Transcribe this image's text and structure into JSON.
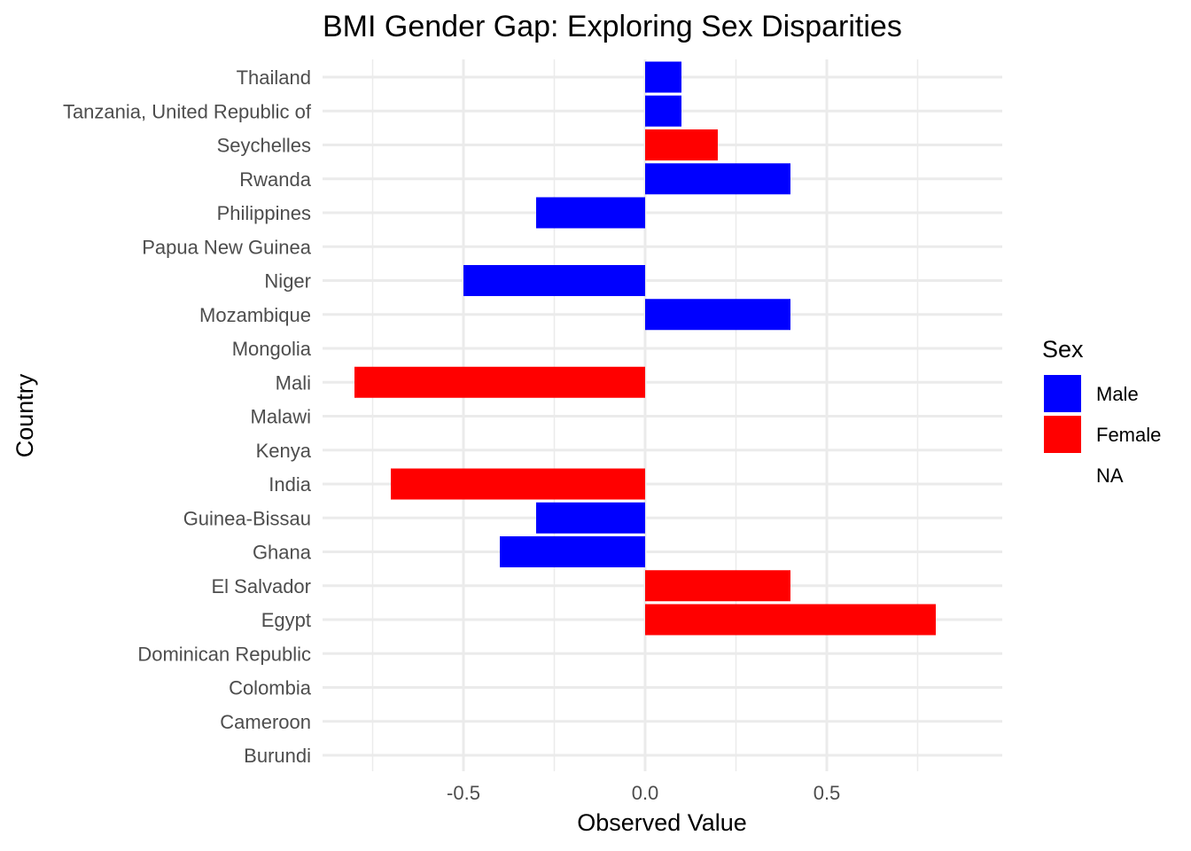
{
  "chart_data": {
    "type": "bar",
    "orientation": "horizontal",
    "title": "BMI Gender Gap: Exploring Sex Disparities",
    "xlabel": "Observed Value",
    "ylabel": "Country",
    "xlim": [
      -0.9,
      1.0
    ],
    "x_ticks": [
      -0.5,
      0.0,
      0.5
    ],
    "x_tick_labels": [
      "-0.5",
      "0.0",
      "0.5"
    ],
    "x_minor_ticks": [
      -0.75,
      -0.25,
      0.25,
      0.75
    ],
    "grid": true,
    "legend": {
      "title": "Sex",
      "position": "right",
      "entries": [
        {
          "label": "Male",
          "color": "#0000ff"
        },
        {
          "label": "Female",
          "color": "#ff0000"
        },
        {
          "label": "NA",
          "color": null
        }
      ]
    },
    "categories": [
      "Thailand",
      "Tanzania, United Republic of",
      "Seychelles",
      "Rwanda",
      "Philippines",
      "Papua New Guinea",
      "Niger",
      "Mozambique",
      "Mongolia",
      "Mali",
      "Malawi",
      "Kenya",
      "India",
      "Guinea-Bissau",
      "Ghana",
      "El Salvador",
      "Egypt",
      "Dominican Republic",
      "Colombia",
      "Cameroon",
      "Burundi"
    ],
    "values": [
      0.1,
      0.1,
      0.2,
      0.4,
      -0.3,
      null,
      -0.5,
      0.4,
      null,
      -0.8,
      null,
      null,
      -0.7,
      -0.3,
      -0.4,
      0.4,
      0.8,
      null,
      null,
      null,
      null
    ],
    "sex": [
      "Male",
      "Male",
      "Female",
      "Male",
      "Male",
      "NA",
      "Male",
      "Male",
      "NA",
      "Female",
      "NA",
      "NA",
      "Female",
      "Male",
      "Male",
      "Female",
      "Female",
      "NA",
      "NA",
      "NA",
      "NA"
    ]
  }
}
